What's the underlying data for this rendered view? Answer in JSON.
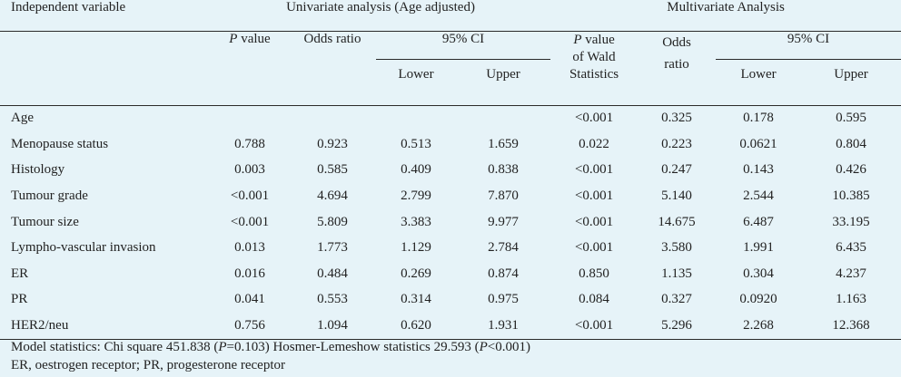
{
  "headers": {
    "independent_variable": "Independent variable",
    "univariate_group": "Univariate analysis (Age adjusted)",
    "multivariate_group": "Multivariate Analysis",
    "p_letter": "P",
    "p_value_suffix": " value",
    "odds_ratio": "Odds ratio",
    "ci": "95% CI",
    "lower": "Lower",
    "upper": "Upper",
    "wald_line1_suffix": " value",
    "wald_line2": "of Wald",
    "wald_line3": "Statistics",
    "odds_line1": "Odds",
    "odds_line2": "ratio"
  },
  "rows": [
    {
      "label": "Age",
      "uni_p": "",
      "uni_or": "",
      "uni_lower": "",
      "uni_upper": "",
      "multi_p": "<0.001",
      "multi_or": "0.325",
      "multi_lower": "0.178",
      "multi_upper": "0.595"
    },
    {
      "label": "Menopause status",
      "uni_p": "0.788",
      "uni_or": "0.923",
      "uni_lower": "0.513",
      "uni_upper": "1.659",
      "multi_p": "0.022",
      "multi_or": "0.223",
      "multi_lower": "0.0621",
      "multi_upper": "0.804"
    },
    {
      "label": "Histology",
      "uni_p": "0.003",
      "uni_or": "0.585",
      "uni_lower": "0.409",
      "uni_upper": "0.838",
      "multi_p": "<0.001",
      "multi_or": "0.247",
      "multi_lower": "0.143",
      "multi_upper": "0.426"
    },
    {
      "label": "Tumour grade",
      "uni_p": "<0.001",
      "uni_or": "4.694",
      "uni_lower": "2.799",
      "uni_upper": "7.870",
      "multi_p": "<0.001",
      "multi_or": "5.140",
      "multi_lower": "2.544",
      "multi_upper": "10.385"
    },
    {
      "label": "Tumour size",
      "uni_p": "<0.001",
      "uni_or": "5.809",
      "uni_lower": "3.383",
      "uni_upper": "9.977",
      "multi_p": "<0.001",
      "multi_or": "14.675",
      "multi_lower": "6.487",
      "multi_upper": "33.195"
    },
    {
      "label": "Lympho-vascular invasion",
      "uni_p": "0.013",
      "uni_or": "1.773",
      "uni_lower": "1.129",
      "uni_upper": "2.784",
      "multi_p": "<0.001",
      "multi_or": "3.580",
      "multi_lower": "1.991",
      "multi_upper": "6.435"
    },
    {
      "label": "ER",
      "uni_p": "0.016",
      "uni_or": "0.484",
      "uni_lower": "0.269",
      "uni_upper": "0.874",
      "multi_p": "0.850",
      "multi_or": "1.135",
      "multi_lower": "0.304",
      "multi_upper": "4.237"
    },
    {
      "label": "PR",
      "uni_p": "0.041",
      "uni_or": "0.553",
      "uni_lower": "0.314",
      "uni_upper": "0.975",
      "multi_p": "0.084",
      "multi_or": "0.327",
      "multi_lower": "0.0920",
      "multi_upper": "1.163"
    },
    {
      "label": "HER2/neu",
      "uni_p": "0.756",
      "uni_or": "1.094",
      "uni_lower": "0.620",
      "uni_upper": "1.931",
      "multi_p": "<0.001",
      "multi_or": "5.296",
      "multi_lower": "2.268",
      "multi_upper": "12.368"
    }
  ],
  "footnotes": {
    "model_a": "Model statistics: Chi square 451.838 (",
    "p1_letter": "P",
    "model_b": "=0.103) Hosmer-Lemeshow statistics 29.593 (",
    "p2_letter": "P",
    "model_c": "<0.001)",
    "abbreviations": "ER, oestrogen receptor; PR, progesterone receptor"
  },
  "colors": {
    "background": "#e6f3f8",
    "text": "#222222",
    "rule": "#2a2a2a"
  }
}
